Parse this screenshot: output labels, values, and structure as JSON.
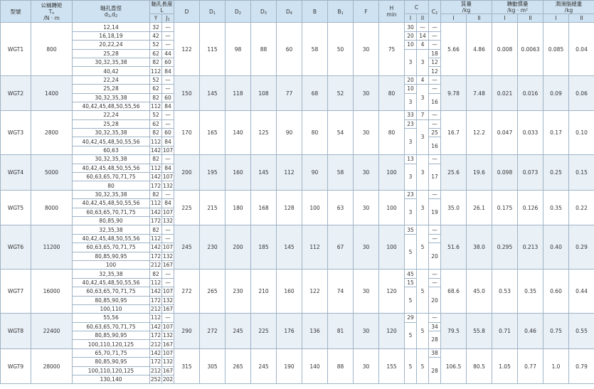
{
  "header": {
    "model": "型號",
    "torque": {
      "name": "公稱轉矩",
      "symbol": "T",
      "sub": "n",
      "unit": "/N · m"
    },
    "bore": {
      "name": "軸孔直徑",
      "a": "d",
      "a_sub": "1",
      "b": ",d",
      "b_sub": "2"
    },
    "length": {
      "name": "軸孔長度",
      "symbol": "L",
      "Y": "Y",
      "J": "J",
      "J_sub": "1"
    },
    "dims": [
      {
        "text": "D"
      },
      {
        "text": "D",
        "sub": "1"
      },
      {
        "text": "D",
        "sub": "2"
      },
      {
        "text": "D",
        "sub": "3"
      },
      {
        "text": "D",
        "sub": "4"
      },
      {
        "text": "B"
      },
      {
        "text": "B",
        "sub": "1"
      },
      {
        "text": "F"
      },
      {
        "text": "H",
        "note": "min"
      }
    ],
    "C": {
      "text": "C",
      "I": "I",
      "II": "II"
    },
    "C2": {
      "text": "C",
      "sub": "2"
    },
    "mass": {
      "name": "質量",
      "unit": "/kg",
      "I": "I",
      "II": "II"
    },
    "inertia": {
      "name": "轉動慣量",
      "unit": "/kg · m²",
      "I": "I",
      "II": "II"
    },
    "grease": {
      "name": "潤滑脂總重",
      "unit": "/kg",
      "I": "I",
      "II": "II"
    }
  },
  "groups": [
    {
      "model": "WGT1",
      "torque": "800",
      "dims": [
        "122",
        "115",
        "98",
        "88",
        "60",
        "58",
        "50",
        "30",
        "75"
      ],
      "weights": [
        "5.66",
        "4.86",
        "0.008",
        "0.0063",
        "0.085",
        "0.04"
      ],
      "rows": [
        {
          "d": "12,14",
          "Y": "32",
          "J1": "—",
          "CI": "30",
          "CII": "—",
          "C2": "—"
        },
        {
          "d": "16,18,19",
          "Y": "42",
          "J1": "—",
          "CI": "20",
          "CII": "14",
          "C2": "—"
        },
        {
          "d": "20,22,24",
          "Y": "52",
          "J1": "—",
          "CI": "10",
          "CII": "4",
          "C2": "—"
        },
        {
          "d": "25,28",
          "Y": "62",
          "J1": "44",
          "CI": "3",
          "CII": "3",
          "C2": "18"
        },
        {
          "d": "30,32,35,38",
          "Y": "82",
          "J1": "60",
          "C2": "12"
        },
        {
          "d": "40,42",
          "Y": "112",
          "J1": "84",
          "C2": "12"
        }
      ]
    },
    {
      "model": "WGT2",
      "torque": "1400",
      "dims": [
        "150",
        "145",
        "118",
        "108",
        "77",
        "68",
        "52",
        "30",
        "80"
      ],
      "weights": [
        "9.78",
        "7.48",
        "0.021",
        "0.016",
        "0.09",
        "0.06"
      ],
      "rows": [
        {
          "d": "22,24",
          "Y": "52",
          "J1": "—",
          "CI": "20",
          "CII": "4",
          "C2": "—"
        },
        {
          "d": "25,28",
          "Y": "62",
          "J1": "—",
          "CI": "10",
          "CII": "3",
          "C2": "—"
        },
        {
          "d": "30,32,35,38",
          "Y": "82",
          "J1": "60",
          "CI": "3",
          "C2": "16"
        },
        {
          "d": "40,42,45,48,50,55,56",
          "Y": "112",
          "J1": "84"
        }
      ]
    },
    {
      "model": "WGT3",
      "torque": "2800",
      "dims": [
        "170",
        "165",
        "140",
        "125",
        "90",
        "80",
        "54",
        "30",
        "80"
      ],
      "weights": [
        "16.7",
        "12.2",
        "0.047",
        "0.033",
        "0.17",
        "0.10"
      ],
      "rows": [
        {
          "d": "22,24",
          "Y": "52",
          "J1": "—",
          "CI": "33",
          "CII": "7",
          "C2": "—"
        },
        {
          "d": "25,28",
          "Y": "62",
          "J1": "—",
          "CI": "23",
          "CII": "3",
          "C2": "—"
        },
        {
          "d": "30,32,35,38",
          "Y": "82",
          "J1": "60",
          "CI": "3",
          "C2": "25"
        },
        {
          "d": "40,42,45,48,50,55,56",
          "Y": "112",
          "J1": "84",
          "C2": "16"
        },
        {
          "d": "60,63",
          "Y": "142",
          "J1": "107"
        }
      ]
    },
    {
      "model": "WGT4",
      "torque": "5000",
      "dims": [
        "200",
        "195",
        "160",
        "145",
        "112",
        "90",
        "58",
        "30",
        "100"
      ],
      "weights": [
        "25.6",
        "19.6",
        "0.098",
        "0.073",
        "0.25",
        "0.15"
      ],
      "rows": [
        {
          "d": "30,32,35,38",
          "Y": "82",
          "J1": "—",
          "CI": "13",
          "CII": "3",
          "C2": "—"
        },
        {
          "d": "40,42,45,48,50,55,56",
          "Y": "112",
          "J1": "84",
          "CI": "3",
          "C2": "17"
        },
        {
          "d": "60,63,65,70,71,75",
          "Y": "142",
          "J1": "107"
        },
        {
          "d": "80",
          "Y": "172",
          "J1": "132"
        }
      ]
    },
    {
      "model": "WGT5",
      "torque": "8000",
      "dims": [
        "225",
        "215",
        "180",
        "168",
        "128",
        "100",
        "63",
        "30",
        "100"
      ],
      "weights": [
        "35.0",
        "26.1",
        "0.175",
        "0.126",
        "0.35",
        "0.22"
      ],
      "rows": [
        {
          "d": "30,32,35,38",
          "Y": "82",
          "J1": "—",
          "CI": "23",
          "CII": "3",
          "C2": "—"
        },
        {
          "d": "40,42,45,48,50,55,56",
          "Y": "112",
          "J1": "84",
          "CI": "3",
          "C2": "19"
        },
        {
          "d": "60,63,65,70,71,75",
          "Y": "142",
          "J1": "107"
        },
        {
          "d": "80,85,90",
          "Y": "172",
          "J1": "132"
        }
      ]
    },
    {
      "model": "WGT6",
      "torque": "11200",
      "dims": [
        "245",
        "230",
        "200",
        "185",
        "145",
        "112",
        "67",
        "30",
        "100"
      ],
      "weights": [
        "51.6",
        "38.0",
        "0.295",
        "0.213",
        "0.40",
        "0.29"
      ],
      "rows": [
        {
          "d": "32,35,38",
          "Y": "82",
          "J1": "—",
          "CI": "35",
          "CII": "5",
          "C2": "—"
        },
        {
          "d": "40,42,45,48,50,55,56",
          "Y": "112",
          "J1": "—",
          "CI": "5",
          "C2": "—"
        },
        {
          "d": "60,63,65,70,71,75",
          "Y": "142",
          "J1": "107",
          "C2": "20"
        },
        {
          "d": "80,85,90,95",
          "Y": "172",
          "J1": "132"
        },
        {
          "d": "100",
          "Y": "212",
          "J1": "167"
        }
      ]
    },
    {
      "model": "WGT7",
      "torque": "16000",
      "dims": [
        "272",
        "265",
        "230",
        "210",
        "160",
        "122",
        "74",
        "30",
        "120"
      ],
      "weights": [
        "68.6",
        "45.0",
        "0.53",
        "0.35",
        "0.60",
        "0.44"
      ],
      "rows": [
        {
          "d": "32,35,38",
          "Y": "82",
          "J1": "—",
          "CI": "45",
          "CII": "5",
          "C2": "—"
        },
        {
          "d": "40,42,45,48,50,55,56",
          "Y": "112",
          "J1": "—",
          "CI": "15",
          "C2": "—"
        },
        {
          "d": "60,63,65,70,71,75",
          "Y": "142",
          "J1": "107",
          "CI": "5",
          "C2": "20"
        },
        {
          "d": "80,85,90,95",
          "Y": "172",
          "J1": "132"
        },
        {
          "d": "100,110",
          "Y": "212",
          "J1": "167"
        }
      ]
    },
    {
      "model": "WGT8",
      "torque": "22400",
      "dims": [
        "290",
        "272",
        "245",
        "225",
        "176",
        "136",
        "81",
        "30",
        "120"
      ],
      "weights": [
        "79.5",
        "55.8",
        "0.71",
        "0.46",
        "0.75",
        "0.55"
      ],
      "rows": [
        {
          "d": "55,56",
          "Y": "112",
          "J1": "—",
          "CI": "29",
          "CII": "5",
          "C2": "—"
        },
        {
          "d": "60,63,65,70,71,75",
          "Y": "142",
          "J1": "107",
          "CI": "5",
          "C2": "34"
        },
        {
          "d": "80,85,90,95",
          "Y": "172",
          "J1": "132",
          "C2": "28"
        },
        {
          "d": "100,110,120,125",
          "Y": "212",
          "J1": "167"
        }
      ]
    },
    {
      "model": "WGT9",
      "torque": "28000",
      "dims": [
        "315",
        "305",
        "265",
        "245",
        "190",
        "140",
        "88",
        "30",
        "155"
      ],
      "weights": [
        "106.5",
        "80.5",
        "1.05",
        "0.77",
        "1.0",
        "0.79"
      ],
      "rows": [
        {
          "d": "65,70,71,75",
          "Y": "142",
          "J1": "107",
          "CI": "5",
          "CII": "5",
          "C2": "38"
        },
        {
          "d": "80,85,90,95",
          "Y": "172",
          "J1": "132",
          "C2": "28"
        },
        {
          "d": "100,110,120,125",
          "Y": "212",
          "J1": "167"
        },
        {
          "d": "130,140",
          "Y": "252",
          "J1": "202"
        }
      ]
    }
  ]
}
